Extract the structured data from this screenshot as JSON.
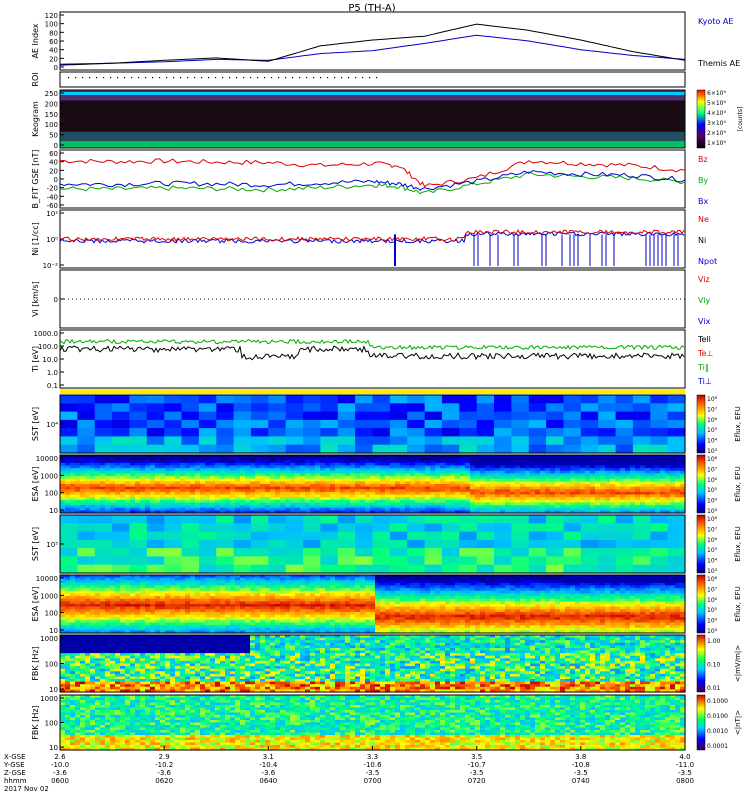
{
  "title": "P5 (TH-A)",
  "footer": {
    "rows": [
      "X-GSE",
      "Y-GSE",
      "Z-GSE",
      "hhmm",
      "2017 Nov 02"
    ],
    "ticks": [
      {
        "x": "2.6",
        "y": "-10.0",
        "z": "-3.6",
        "t": "0600"
      },
      {
        "x": "2.9",
        "y": "-10.2",
        "z": "-3.6",
        "t": "0620"
      },
      {
        "x": "3.1",
        "y": "-10.4",
        "z": "-3.6",
        "t": "0640"
      },
      {
        "x": "3.3",
        "y": "-10.6",
        "z": "-3.5",
        "t": "0700"
      },
      {
        "x": "3.5",
        "y": "-10.7",
        "z": "-3.5",
        "t": "0720"
      },
      {
        "x": "3.8",
        "y": "-10.8",
        "z": "-3.5",
        "t": "0740"
      },
      {
        "x": "4.0",
        "y": "-11.0",
        "z": "-3.5",
        "t": "0800"
      }
    ]
  },
  "chart_data": [
    {
      "type": "line",
      "panel": "ae",
      "ylabel": "AE Index",
      "yticks": [
        "120",
        "100",
        "80",
        "60",
        "40",
        "20",
        "0"
      ],
      "ylim": [
        0,
        120
      ],
      "x": [
        0,
        10,
        20,
        30,
        40,
        50,
        60,
        70,
        80,
        90,
        100,
        110,
        120
      ],
      "series": [
        {
          "name": "Kyoto AE",
          "color": "#0000cc",
          "values": [
            12,
            14,
            17,
            22,
            20,
            34,
            40,
            55,
            72,
            60,
            42,
            30,
            22
          ]
        },
        {
          "name": "Themis AE",
          "color": "#000000",
          "values": [
            10,
            14,
            20,
            25,
            18,
            50,
            62,
            70,
            95,
            82,
            62,
            38,
            20
          ]
        }
      ]
    },
    {
      "type": "heatmap",
      "panel": "roi",
      "ylabel": "ROI"
    },
    {
      "type": "heatmap",
      "panel": "keogram",
      "ylabel": "Keogram",
      "yticks": [
        "250",
        "200",
        "150",
        "100",
        "50",
        "0"
      ],
      "colorbar": {
        "labels": [
          "6×10⁴",
          "5×10⁴",
          "4×10⁴",
          "3×10⁴",
          "2×10⁴",
          "1×10⁴"
        ],
        "unit": "[counts]"
      }
    },
    {
      "type": "line",
      "panel": "bfield",
      "ylabel": "B_FIT GSE [nT]",
      "yticks": [
        "60",
        "40",
        "20",
        "0",
        "-20",
        "-40",
        "-60"
      ],
      "ylim": [
        -60,
        60
      ],
      "x": [
        0,
        10,
        20,
        30,
        40,
        50,
        60,
        65,
        70,
        80,
        90,
        100,
        110,
        120
      ],
      "series": [
        {
          "name": "Bz",
          "color": "#dd0000",
          "values": [
            38,
            36,
            37,
            35,
            34,
            28,
            32,
            28,
            -15,
            2,
            38,
            32,
            28,
            18
          ]
        },
        {
          "name": "By",
          "color": "#00aa00",
          "values": [
            -20,
            -21,
            -19,
            -20,
            -22,
            -18,
            -12,
            -15,
            -30,
            -10,
            10,
            5,
            2,
            -6
          ]
        },
        {
          "name": "Bx",
          "color": "#0000cc",
          "values": [
            -10,
            -11,
            -9,
            -10,
            -12,
            -8,
            -5,
            -10,
            -20,
            -5,
            15,
            10,
            8,
            -2
          ]
        }
      ]
    },
    {
      "type": "line",
      "panel": "density",
      "ylabel": "Ni [1/cc]",
      "yticks": [
        "10²",
        "10⁰",
        "10⁻²"
      ],
      "series": [
        {
          "name": "Ne",
          "color": "#dd0000"
        },
        {
          "name": "Ni",
          "color": "#000000"
        },
        {
          "name": "Npot",
          "color": "#0000cc"
        }
      ]
    },
    {
      "type": "line",
      "panel": "velocity",
      "ylabel": "Vi [km/s]",
      "yticks": [
        "0"
      ],
      "series": [
        {
          "name": "Viz",
          "color": "#dd0000"
        },
        {
          "name": "Viy",
          "color": "#00aa00"
        },
        {
          "name": "Vix",
          "color": "#0000cc"
        }
      ]
    },
    {
      "type": "line",
      "panel": "temperature",
      "ylabel": "Ti [eV]",
      "yticks": [
        "1000.0",
        "100.0",
        "10.0",
        "1.0",
        "0.1"
      ],
      "series": [
        {
          "name": "Tell",
          "color": "#000000"
        },
        {
          "name": "Te⊥",
          "color": "#dd0000"
        },
        {
          "name": "Ti‖",
          "color": "#00aa00"
        },
        {
          "name": "Ti⊥",
          "color": "#0000cc"
        }
      ]
    },
    {
      "type": "heatmap",
      "panel": "sst_e",
      "ylabel": "SST [eV]",
      "yticks": [
        "10⁴"
      ]
    },
    {
      "type": "heatmap",
      "panel": "esa_e",
      "ylabel": "ESA [eV]",
      "yticks": [
        "10000",
        "1000",
        "100",
        "10"
      ]
    },
    {
      "type": "heatmap",
      "panel": "sst_i",
      "ylabel": "SST [eV]",
      "yticks": [
        "10⁵"
      ]
    },
    {
      "type": "heatmap",
      "panel": "esa_i",
      "ylabel": "ESA [eV]",
      "yticks": [
        "10000",
        "1000",
        "100",
        "10"
      ]
    },
    {
      "type": "heatmap",
      "panel": "fbk1",
      "ylabel": "FBK [Hz]",
      "yticks": [
        "1000",
        "100",
        "10"
      ]
    },
    {
      "type": "heatmap",
      "panel": "fbk2",
      "ylabel": "FBK [Hz]",
      "yticks": [
        "1000",
        "100",
        "10"
      ]
    }
  ],
  "colorbars": {
    "eflux": {
      "labels": [
        "10⁸",
        "10⁷",
        "10⁶",
        "10⁵",
        "10⁴",
        "10³"
      ],
      "unit": "Eflux, EFU"
    },
    "fbk1": {
      "labels": [
        "1.00",
        "0.10",
        "0.01"
      ],
      "unit": "<|mV/m|>"
    },
    "fbk2": {
      "labels": [
        "0.1000",
        "0.0100",
        "0.0010",
        "0.0001"
      ],
      "unit": "<|nT|>"
    }
  }
}
